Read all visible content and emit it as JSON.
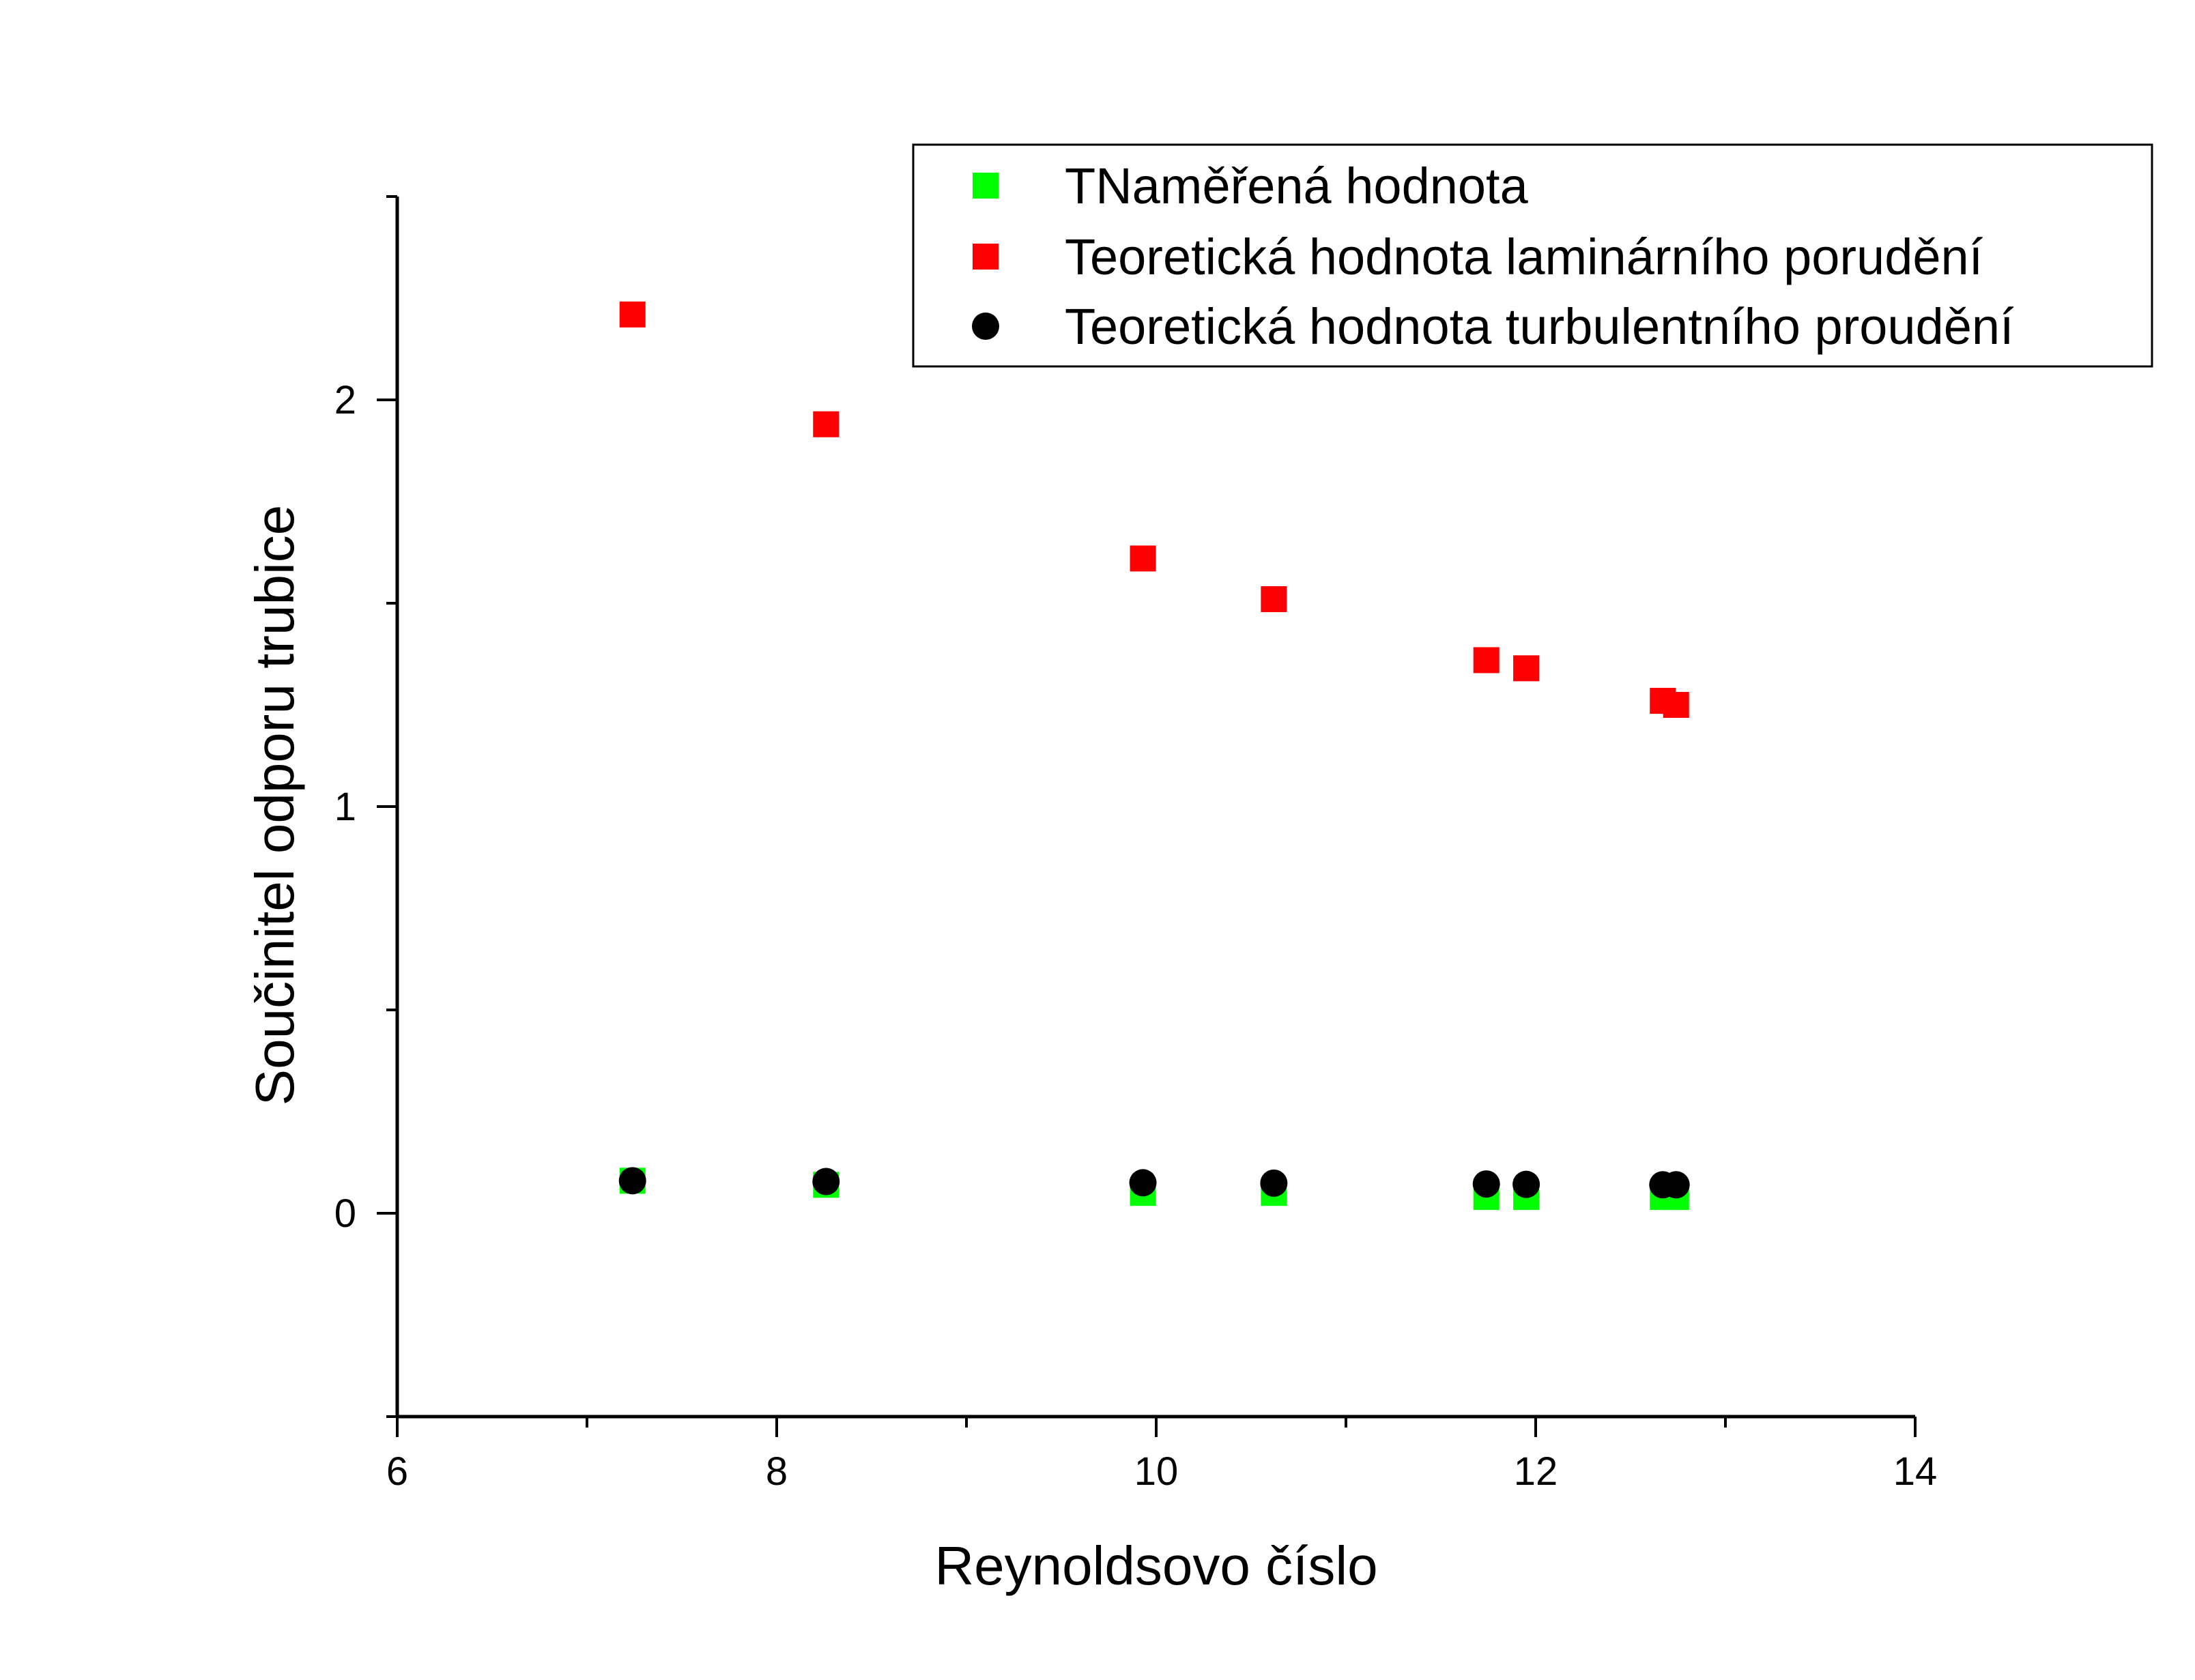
{
  "chart_data": {
    "type": "scatter",
    "title": "",
    "xlabel": "Reynoldsovo číslo",
    "ylabel": "Součinitel odporu trubice",
    "xlim": [
      6,
      14
    ],
    "ylim": [
      -0.5,
      2.5
    ],
    "xticks": [
      6,
      8,
      10,
      12,
      14
    ],
    "yticks": [
      0,
      1,
      2
    ],
    "grid": false,
    "legend_position": "top-right",
    "series": [
      {
        "name": "TNaměřená hodnota",
        "marker": "square",
        "color": "#00ff00",
        "x": [
          7.24,
          8.26,
          9.93,
          10.62,
          11.74,
          11.95,
          12.67,
          12.74
        ],
        "y": [
          0.08,
          0.07,
          0.05,
          0.05,
          0.04,
          0.04,
          0.04,
          0.04
        ]
      },
      {
        "name": "Teoretická hodnota laminárního porudění",
        "marker": "square",
        "color": "#ff0000",
        "x": [
          7.24,
          8.26,
          9.93,
          10.62,
          11.74,
          11.95,
          12.67,
          12.74
        ],
        "y": [
          2.21,
          1.94,
          1.61,
          1.51,
          1.36,
          1.34,
          1.26,
          1.25
        ]
      },
      {
        "name": "Teoretická hodnota turbulentního proudění",
        "marker": "circle",
        "color": "#000000",
        "x": [
          7.24,
          8.26,
          9.93,
          10.62,
          11.74,
          11.95,
          12.67,
          12.74
        ],
        "y": [
          0.08,
          0.078,
          0.075,
          0.074,
          0.072,
          0.071,
          0.07,
          0.07
        ]
      }
    ]
  }
}
